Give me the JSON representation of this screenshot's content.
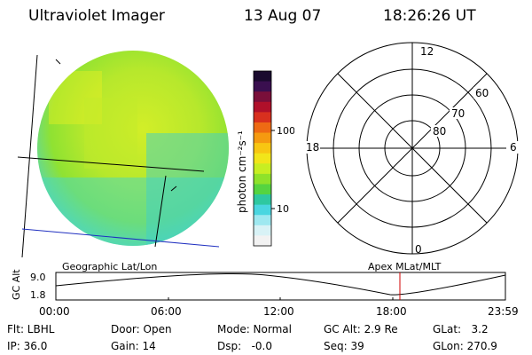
{
  "header": {
    "instrument": "Ultraviolet Imager",
    "date": "13 Aug 07",
    "time": "18:26:26 UT"
  },
  "colorbar": {
    "unit_label": "photon cm⁻²s⁻¹",
    "tick_100": "100",
    "tick_10": "10",
    "colors": [
      "#1a0a2e",
      "#3a0f4f",
      "#7a0f3a",
      "#b0102a",
      "#d8301e",
      "#ee6a14",
      "#f59a10",
      "#f8c612",
      "#f2e51a",
      "#c8ee22",
      "#8fe22a",
      "#55d440",
      "#2ec8a0",
      "#4ad6e0",
      "#9ee8f0",
      "#d8f2f6",
      "#f2f2f2"
    ]
  },
  "polar": {
    "mlt_12": "12",
    "mlt_18": "18",
    "mlt_6": "6",
    "mlt_0": "0",
    "lat_60": "60",
    "lat_70": "70",
    "lat_80": "80"
  },
  "timeline": {
    "left_label": "Geographic Lat/Lon",
    "right_label": "Apex MLat/MLT",
    "axis_title": "GC Alt",
    "y_top": "9.0",
    "y_bottom": "1.8",
    "x_ticks": [
      "00:00",
      "06:00",
      "12:00",
      "18:00",
      "23:59"
    ]
  },
  "status": {
    "flt": "Flt: LBHL",
    "ip": "IP: 36.0",
    "door": "Door: Open",
    "gain": "Gain: 14",
    "mode": "Mode: Normal",
    "dsp": "Dsp:   -0.0",
    "gcalt": "GC Alt: 2.9 Re",
    "seq": "Seq: 39",
    "glat": "GLat:   3.2",
    "glon": "GLon: 270.9"
  }
}
